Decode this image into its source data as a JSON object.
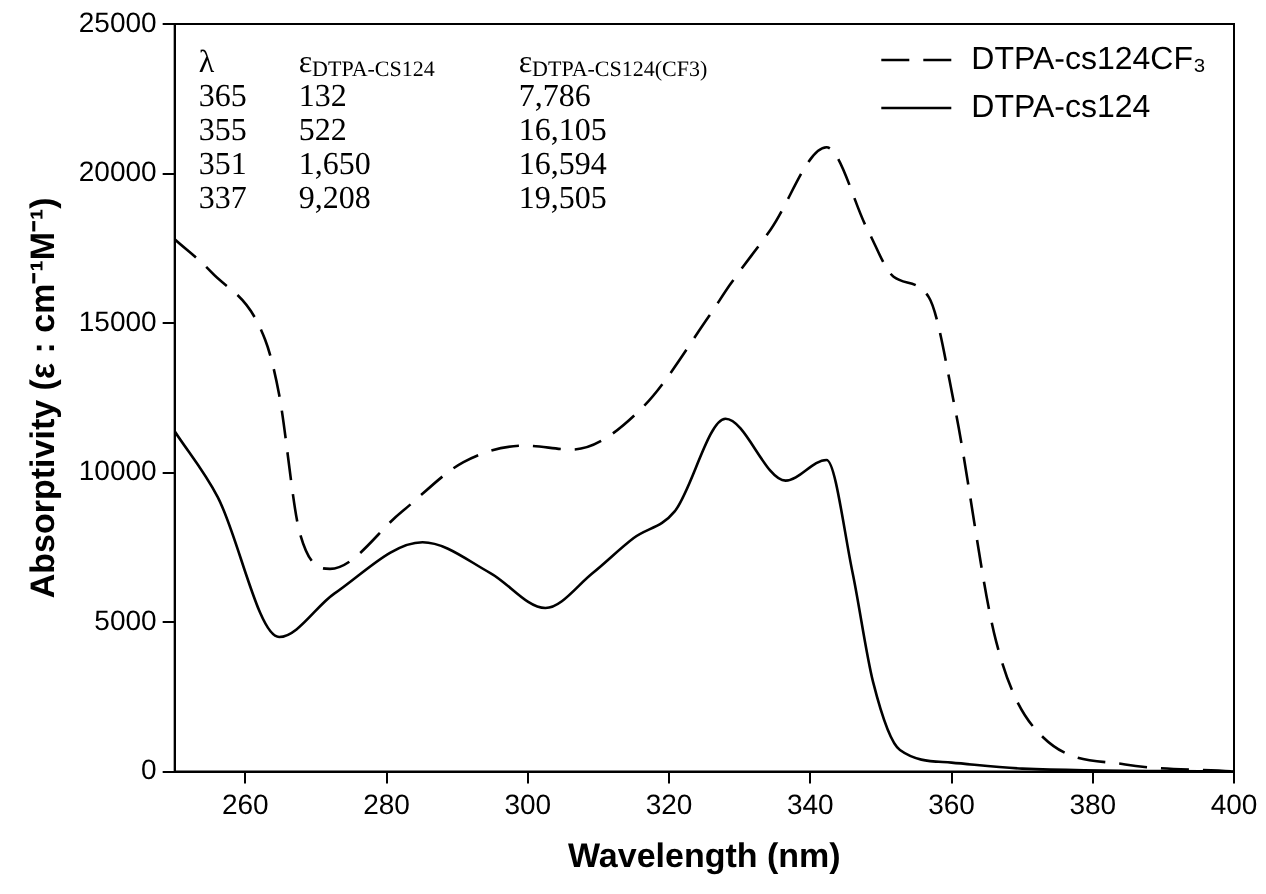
{
  "chart_data": {
    "type": "line",
    "xlabel": "Wavelength (nm)",
    "ylabel": "Absorptivity (ε : cm⁻¹M⁻¹)",
    "xlim": [
      250,
      400
    ],
    "xticks": [
      260,
      280,
      300,
      320,
      340,
      360,
      380,
      400
    ],
    "ylim": [
      0,
      25000
    ],
    "yticks": [
      0,
      5000,
      10000,
      15000,
      20000,
      25000
    ],
    "grid": false,
    "legend": "top right",
    "marker": "none",
    "series": [
      {
        "name": "DTPA-cs124CF₃",
        "color": "#000000",
        "line_style": "dashed",
        "x": [
          250,
          255.2,
          262.8,
          264.8,
          267.7,
          272,
          282.2,
          290.9,
          299.6,
          306.3,
          316.1,
          325.7,
          328.6,
          334.4,
          342.3,
          348.1,
          351.8,
          356.8,
          360.5,
          366.3,
          373,
          384.6,
          400
        ],
        "values": [
          17800,
          16700,
          14450,
          12600,
          8000,
          6780,
          8700,
          10350,
          10900,
          10770,
          12140,
          15240,
          16270,
          18130,
          20880,
          18130,
          16550,
          15860,
          12140,
          4370,
          1140,
          240,
          0
        ]
      },
      {
        "name": "DTPA-cs124",
        "color": "#000000",
        "line_style": "solid",
        "x": [
          250,
          256.1,
          264.8,
          272.6,
          285.1,
          294.7,
          302.5,
          309.2,
          315,
          320.8,
          328,
          336.5,
          342.3,
          346,
          348.9,
          352.7,
          360,
          370,
          400
        ],
        "values": [
          11380,
          9180,
          4500,
          5950,
          7670,
          6640,
          5470,
          6640,
          7810,
          8700,
          11800,
          9730,
          10420,
          6640,
          2990,
          720,
          300,
          100,
          0
        ]
      }
    ],
    "annotations": [
      "λ",
      "ε$_{DTPA-CS124}$",
      "ε$_{DTPA-CS124(CF3)}$",
      "365",
      "132",
      "7,786",
      "355",
      "522",
      "16,105",
      "351",
      "1,650",
      "16,594",
      "337",
      "9,208",
      "19,505"
    ]
  }
}
